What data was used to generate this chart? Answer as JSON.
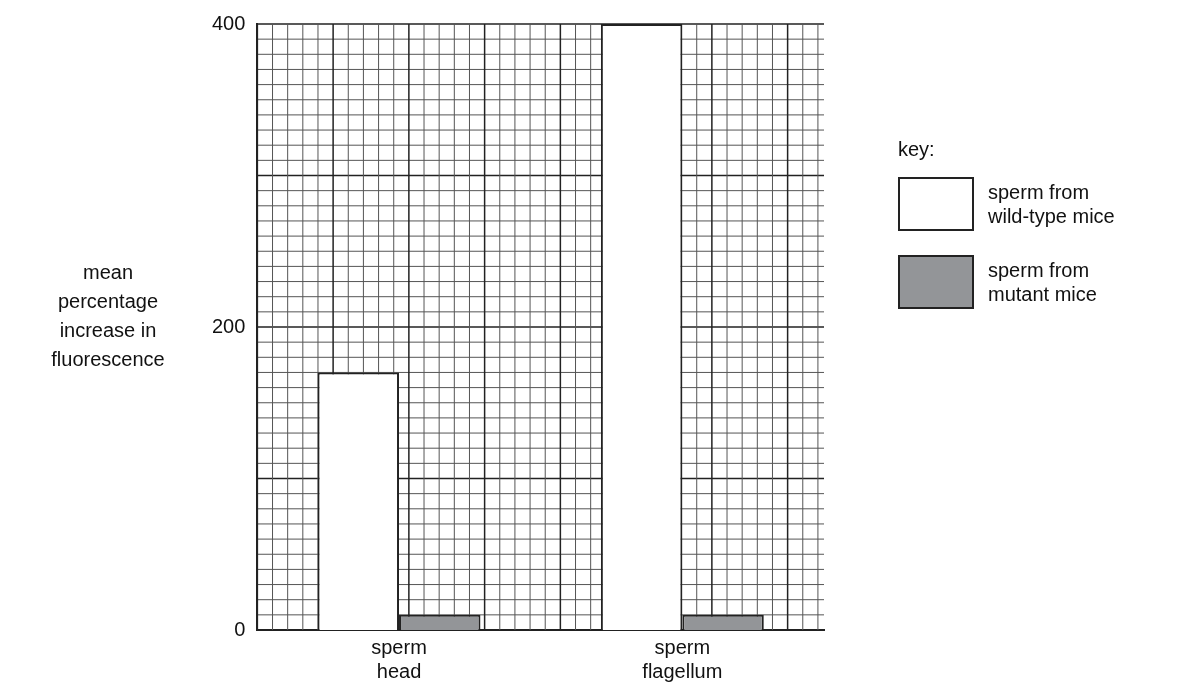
{
  "chart_data": {
    "type": "bar",
    "ylabel": "mean percentage increase in fluorescence",
    "legend_title": "key:",
    "categories": [
      "sperm head",
      "sperm flagellum"
    ],
    "series": [
      {
        "name": "sperm from wild-type mice",
        "color": "#ffffff",
        "values": [
          170,
          400
        ]
      },
      {
        "name": "sperm from mutant mice",
        "color": "#939598",
        "values": [
          10,
          10
        ]
      }
    ],
    "ylim": [
      0,
      400
    ],
    "yticks": [
      0,
      200,
      400
    ],
    "grid": true,
    "legend": "right"
  }
}
